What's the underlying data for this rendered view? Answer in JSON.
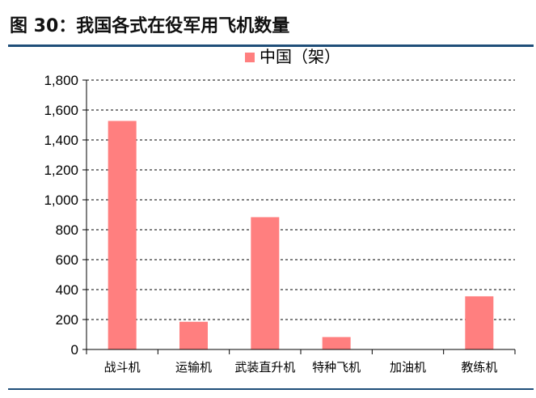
{
  "figure": {
    "title": "图 30：我国各式在役军用飞机数量"
  },
  "chart_data": {
    "type": "bar",
    "title": "",
    "xlabel": "",
    "ylabel": "",
    "categories": [
      "战斗机",
      "运输机",
      "武装直升机",
      "特种飞机",
      "加油机",
      "教练机"
    ],
    "series": [
      {
        "name": "中国（架）",
        "values": [
          1527,
          185,
          884,
          83,
          0,
          355
        ],
        "color": "#ff7f7f"
      }
    ],
    "ylim": [
      0,
      1800
    ],
    "yticks": [
      0,
      200,
      400,
      600,
      800,
      1000,
      1200,
      1400,
      1600,
      1800
    ],
    "ytick_labels": [
      "0",
      "200",
      "400",
      "600",
      "800",
      "1,000",
      "1,200",
      "1,400",
      "1,600",
      "1,800"
    ],
    "grid": "horizontal dashed",
    "legend": "top-center"
  },
  "colors": {
    "bar": "#ff7f7f",
    "rule": "#1f4e79",
    "grid": "#000000"
  }
}
